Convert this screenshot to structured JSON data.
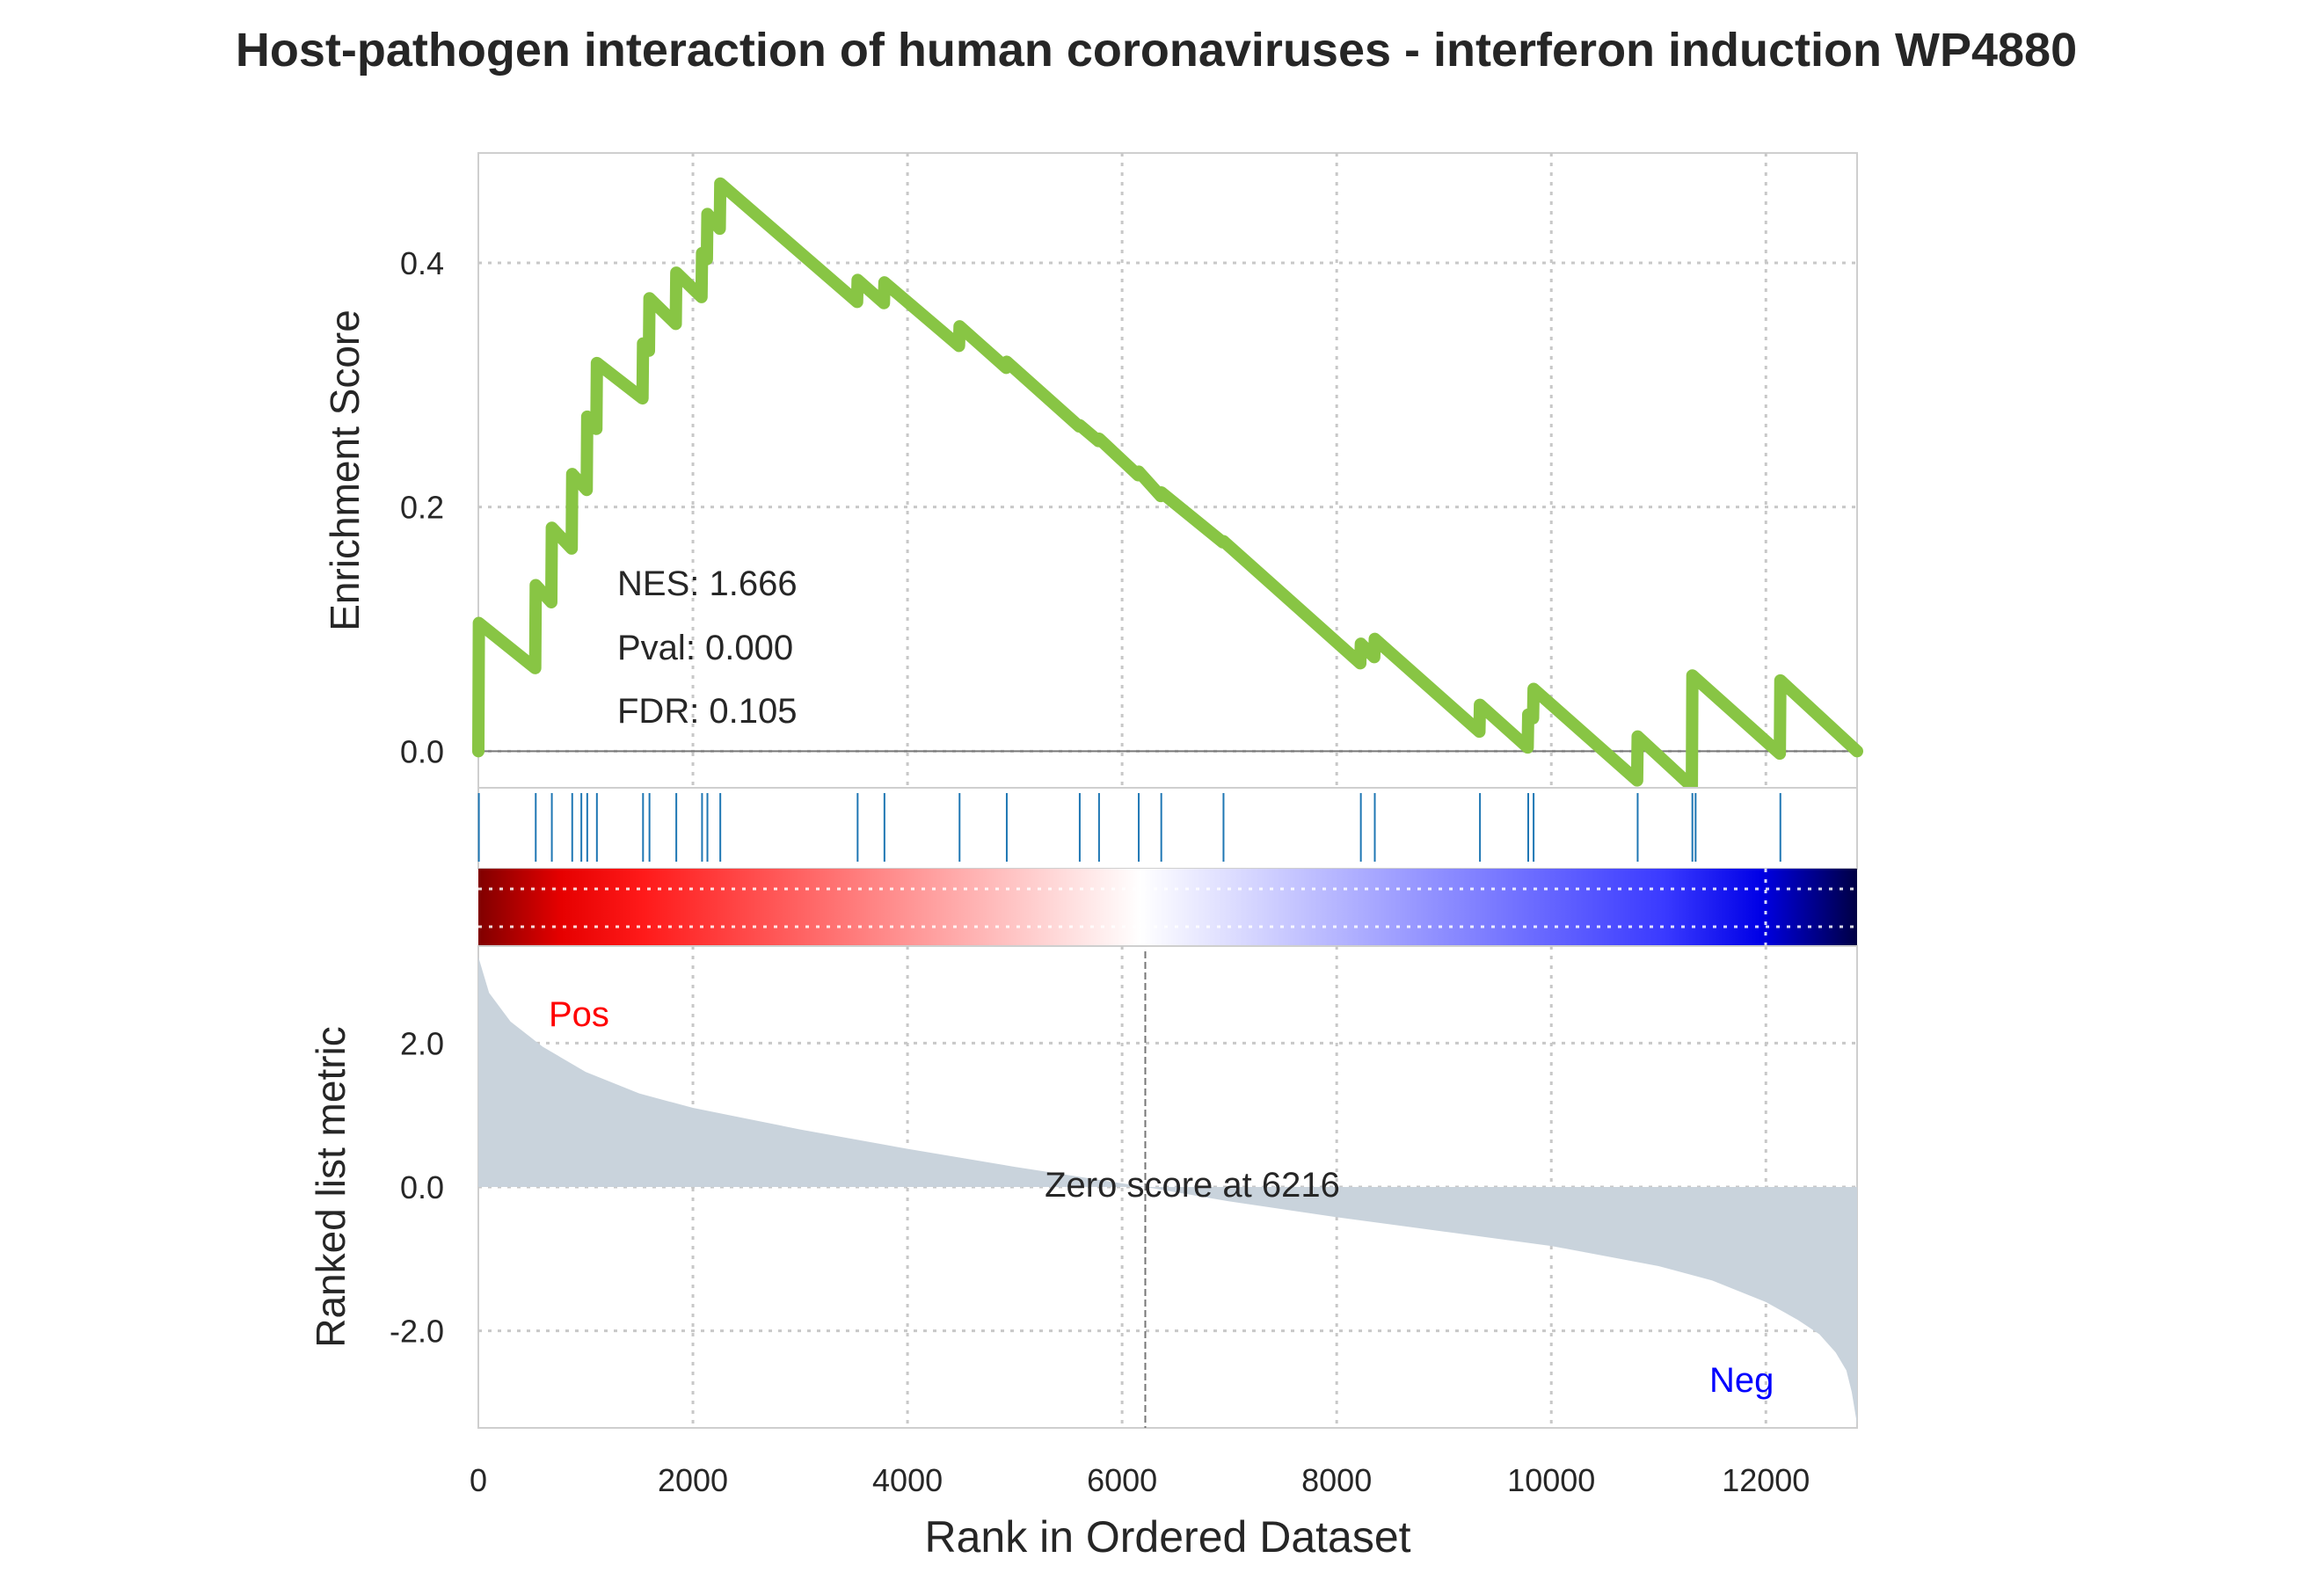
{
  "title": "Host-pathogen interaction of human coronaviruses - interferon induction WP4880",
  "colors": {
    "es_line": "#88c544",
    "hits": "#1f77b4",
    "metric_fill": "#c9d3dc",
    "pos_label": "#ff0000",
    "neg_label": "#0000ff",
    "grid": "#c8c8c8",
    "frame": "#cfcfcf"
  },
  "chart_data": [
    {
      "type": "line",
      "panel": "enrichment",
      "ylabel": "Enrichment Score",
      "yticks": [
        "0.0",
        "0.2",
        "0.4"
      ],
      "ylim": [
        -0.03,
        0.49
      ],
      "xlim": [
        0,
        12850
      ],
      "grid": true,
      "stats": [
        "NES: 1.666",
        "Pval: 0.000",
        "FDR: 0.105"
      ],
      "x": [
        0,
        5,
        530,
        535,
        680,
        685,
        870,
        875,
        1010,
        1015,
        1100,
        1105,
        1530,
        1535,
        1590,
        1595,
        1840,
        1845,
        2080,
        2085,
        2130,
        2135,
        2250,
        2255,
        3530,
        3535,
        3780,
        3785,
        4480,
        4485,
        4920,
        4925,
        5600,
        5605,
        5780,
        5785,
        6150,
        6155,
        6360,
        6365,
        6940,
        6945,
        8220,
        8225,
        8350,
        8355,
        9330,
        9335,
        9780,
        9785,
        9830,
        9835,
        10800,
        10805,
        11310,
        11315,
        12130,
        12135,
        12850
      ],
      "y": [
        0.0,
        0.105,
        0.068,
        0.136,
        0.122,
        0.183,
        0.166,
        0.227,
        0.214,
        0.274,
        0.264,
        0.318,
        0.289,
        0.334,
        0.328,
        0.371,
        0.35,
        0.392,
        0.372,
        0.408,
        0.403,
        0.44,
        0.428,
        0.465,
        0.368,
        0.386,
        0.367,
        0.384,
        0.332,
        0.348,
        0.314,
        0.319,
        0.266,
        0.267,
        0.254,
        0.256,
        0.226,
        0.229,
        0.209,
        0.212,
        0.171,
        0.172,
        0.072,
        0.088,
        0.077,
        0.092,
        0.016,
        0.038,
        0.003,
        0.03,
        0.027,
        0.051,
        -0.024,
        0.012,
        -0.029,
        0.062,
        -0.002,
        0.058,
        0.0
      ]
    },
    {
      "type": "rug",
      "panel": "hits",
      "hits": [
        5,
        535,
        685,
        875,
        960,
        1015,
        1105,
        1535,
        1595,
        1845,
        2085,
        2135,
        2255,
        3535,
        3785,
        4485,
        4925,
        5605,
        5785,
        6155,
        6365,
        6945,
        8225,
        8355,
        9335,
        9785,
        9835,
        10805,
        11315,
        11345,
        12135
      ]
    },
    {
      "type": "heatmap",
      "panel": "rank-colorbar",
      "colormap": "seismic_r",
      "xlim": [
        0,
        12850
      ]
    },
    {
      "type": "area",
      "panel": "ranked-metric",
      "xlabel": "Rank in Ordered Dataset",
      "ylabel": "Ranked list metric",
      "xlim": [
        0,
        12850
      ],
      "ylim": [
        -3.35,
        3.35
      ],
      "xticks": [
        "0",
        "2000",
        "4000",
        "6000",
        "8000",
        "10000",
        "12000"
      ],
      "yticks": [
        "2.0",
        "0.0",
        "-2.0"
      ],
      "x": [
        0,
        100,
        300,
        600,
        1000,
        1500,
        2000,
        3000,
        4000,
        5000,
        6000,
        6216,
        7000,
        8000,
        9000,
        10000,
        11000,
        11500,
        12000,
        12300,
        12500,
        12650,
        12750,
        12800,
        12850
      ],
      "y": [
        3.2,
        2.7,
        2.3,
        1.95,
        1.6,
        1.3,
        1.1,
        0.8,
        0.53,
        0.28,
        0.05,
        0.0,
        -0.2,
        -0.42,
        -0.62,
        -0.82,
        -1.1,
        -1.3,
        -1.6,
        -1.85,
        -2.05,
        -2.3,
        -2.55,
        -2.85,
        -3.3
      ],
      "zero_score_label": "Zero score at 6216",
      "zero_rank": 6216,
      "pos_label": "Pos",
      "neg_label": "Neg"
    }
  ]
}
